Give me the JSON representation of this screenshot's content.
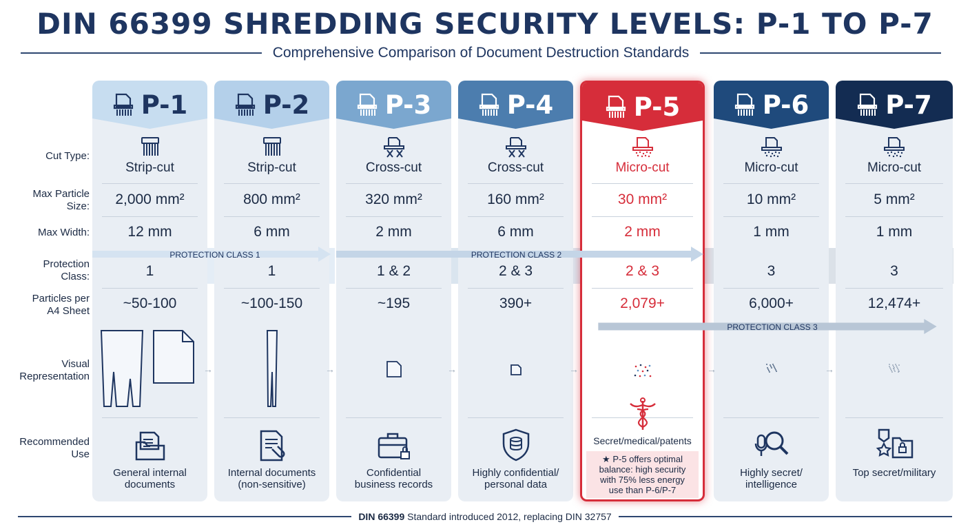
{
  "title": "DIN 66399 SHREDDING SECURITY LEVELS: P-1 TO P-7",
  "subtitle": "Comprehensive Comparison of Document Destruction Standards",
  "row_labels": {
    "cut_type": "Cut Type:",
    "max_particle": "Max Particle\nSize:",
    "max_width": "Max Width:",
    "protection": "Protection\nClass:",
    "particles": "Particles per\nA4 Sheet",
    "visual": "Visual\nRepresentation",
    "use": "Recommended\nUse"
  },
  "protection_bands": [
    {
      "label": "PROTECTION CLASS 1"
    },
    {
      "label": "PROTECTION CLASS 2"
    },
    {
      "label": "PROTECTION CLASS 3"
    }
  ],
  "levels": [
    {
      "code": "P-1",
      "cut": "Strip-cut",
      "particle": "2,000 mm²",
      "width": "12 mm",
      "pclass": "1",
      "count": "~50-100",
      "use": "General internal\ndocuments",
      "head_color": "#c7ddf0",
      "text_color": "#1e3560",
      "use_icon": "folder-documents-icon"
    },
    {
      "code": "P-2",
      "cut": "Strip-cut",
      "particle": "800 mm²",
      "width": "6 mm",
      "pclass": "1",
      "count": "~100-150",
      "use": "Internal documents\n(non-sensitive)",
      "head_color": "#b4d0ea",
      "text_color": "#1e3560",
      "use_icon": "document-clip-icon"
    },
    {
      "code": "P-3",
      "cut": "Cross-cut",
      "particle": "320 mm²",
      "width": "2 mm",
      "pclass": "1 & 2",
      "count": "~195",
      "use": "Confidential\nbusiness records",
      "head_color": "#7ba7cf",
      "text_color": "#ffffff",
      "use_icon": "briefcase-lock-icon"
    },
    {
      "code": "P-4",
      "cut": "Cross-cut",
      "particle": "160 mm²",
      "width": "6 mm",
      "pclass": "2 & 3",
      "count": "390+",
      "use": "Highly confidential/\npersonal data",
      "head_color": "#4c7dae",
      "text_color": "#ffffff",
      "use_icon": "shield-database-icon"
    },
    {
      "code": "P-5",
      "cut": "Micro-cut",
      "particle": "30 mm²",
      "width": "2 mm",
      "pclass": "2 & 3",
      "count": "2,079+",
      "use": "Secret/medical/patents",
      "head_color": "#d62d3a",
      "text_color": "#ffffff",
      "use_icon": "caduceus-icon",
      "note": "★ P-5 offers optimal\nbalance: high security\nwith 75% less energy\nuse than P-6/P-7"
    },
    {
      "code": "P-6",
      "cut": "Micro-cut",
      "particle": "10 mm²",
      "width": "1 mm",
      "pclass": "3",
      "count": "6,000+",
      "use": "Highly secret/\nintelligence",
      "head_color": "#1f4a7c",
      "text_color": "#ffffff",
      "use_icon": "microphone-magnifier-icon"
    },
    {
      "code": "P-7",
      "cut": "Micro-cut",
      "particle": "5 mm²",
      "width": "1 mm",
      "pclass": "3",
      "count": "12,474+",
      "use": "Top secret/military",
      "head_color": "#132c52",
      "text_color": "#ffffff",
      "use_icon": "medal-lockfolder-icon"
    }
  ],
  "highlight_color": "#d62d3a",
  "footer": {
    "bold": "DIN 66399",
    "rest": "Standard introduced 2012, replacing DIN 32757"
  }
}
